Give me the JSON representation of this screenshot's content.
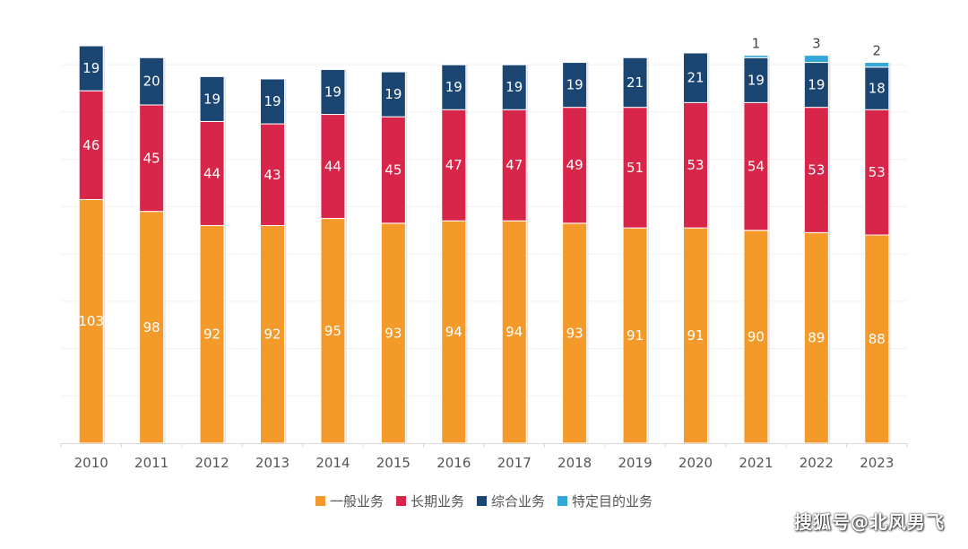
{
  "chart_data": {
    "type": "bar",
    "stacked": true,
    "title": "",
    "xlabel": "",
    "ylabel": "",
    "ylim": [
      0,
      176
    ],
    "grid": true,
    "legend_position": "bottom",
    "categories": [
      "2010",
      "2011",
      "2012",
      "2013",
      "2014",
      "2015",
      "2016",
      "2017",
      "2018",
      "2019",
      "2020",
      "2021",
      "2022",
      "2023"
    ],
    "series": [
      {
        "name": "一般业务",
        "color": "#F39A2B",
        "values": [
          103,
          98,
          92,
          92,
          95,
          93,
          94,
          94,
          93,
          91,
          91,
          90,
          89,
          88
        ]
      },
      {
        "name": "长期业务",
        "color": "#D8264A",
        "values": [
          46,
          45,
          44,
          43,
          44,
          45,
          47,
          47,
          49,
          51,
          53,
          54,
          53,
          53
        ]
      },
      {
        "name": "综合业务",
        "color": "#1B4672",
        "values": [
          19,
          20,
          19,
          19,
          19,
          19,
          19,
          19,
          19,
          21,
          21,
          19,
          19,
          18
        ]
      },
      {
        "name": "特定目的业务",
        "color": "#33A8D8",
        "values": [
          null,
          null,
          null,
          null,
          null,
          null,
          null,
          null,
          null,
          null,
          null,
          1,
          3,
          2
        ]
      }
    ]
  },
  "watermark": "搜狐号@北风男飞"
}
